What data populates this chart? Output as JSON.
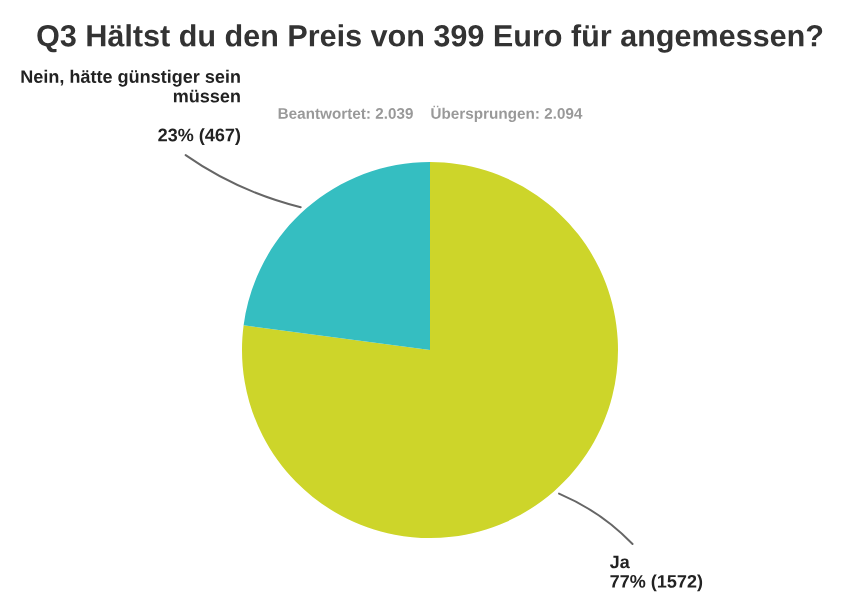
{
  "chart_data": {
    "type": "pie",
    "title": "Q3 Hältst du den Preis von 399 Euro für angemessen?",
    "subtitle": "Beantwortet: 2.039    Übersprungen: 2.094",
    "categories": [
      "Ja",
      "Nein, hätte günstiger sein müssen"
    ],
    "values": [
      1572,
      467
    ],
    "colors": [
      "#cdd52a",
      "#35bec1"
    ],
    "value_labels": [
      "77% (1572)",
      "23% (467)"
    ]
  }
}
